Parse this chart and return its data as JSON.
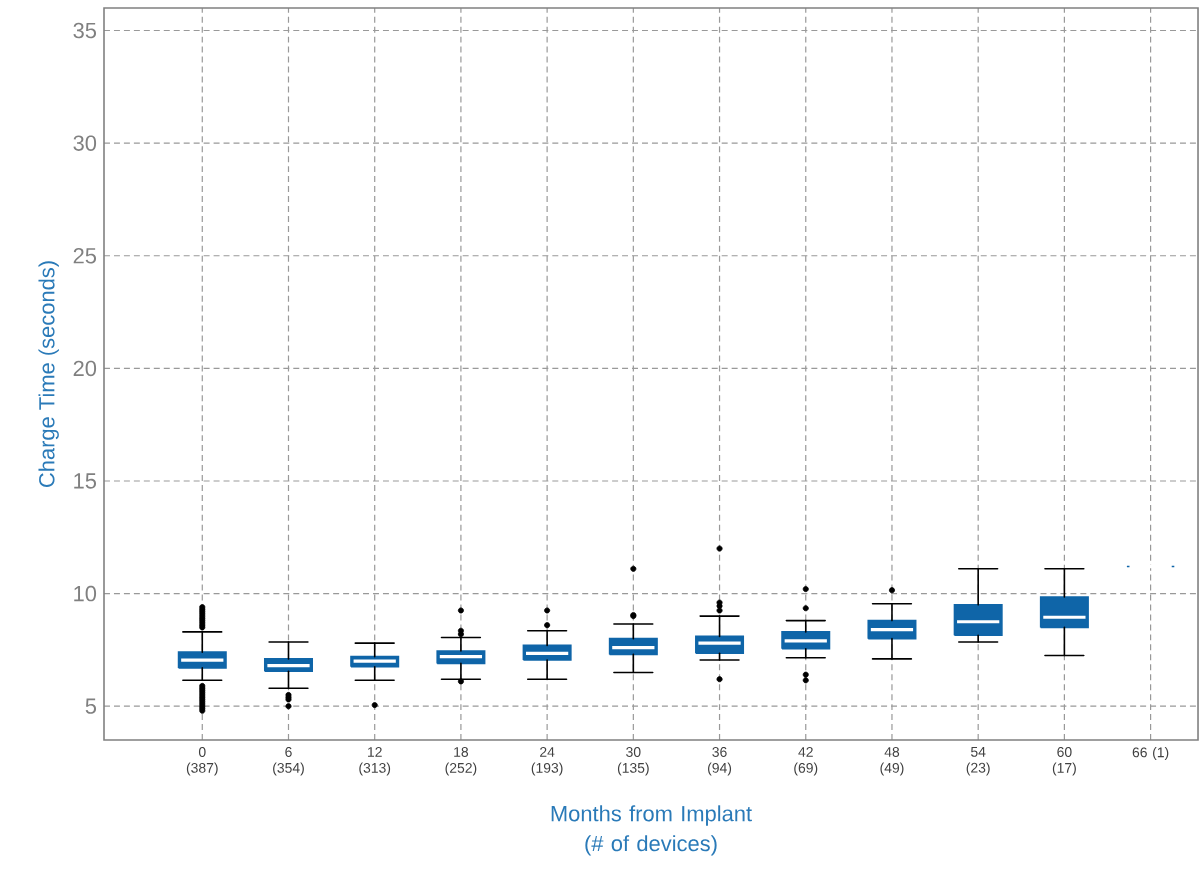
{
  "chart_data": {
    "type": "box",
    "xlabel": "Months from Implant (# of devices)",
    "ylabel": "Charge Time (seconds)",
    "categories": [
      "0 (387)",
      "6 (354)",
      "12 (313)",
      "18 (252)",
      "24 (193)",
      "30 (135)",
      "36 (94)",
      "42 (69)",
      "48 (49)",
      "54 (23)",
      "60 (17)",
      "66 (1)"
    ],
    "color": "#0f65a8",
    "boxes": [
      {
        "low": 6.15,
        "q1": 6.7,
        "median": 7.05,
        "q3": 7.4,
        "high": 8.3,
        "outliers": [
          8.5,
          8.6,
          8.7,
          8.8,
          8.9,
          9.0,
          9.1,
          9.2,
          9.3,
          9.4,
          4.8,
          4.9,
          5.0,
          5.1,
          5.2,
          5.3,
          5.4,
          5.5,
          5.6,
          5.7,
          5.8,
          5.9
        ]
      },
      {
        "low": 5.8,
        "q1": 6.55,
        "median": 6.8,
        "q3": 7.1,
        "high": 7.85,
        "outliers": [
          5.5,
          5.4,
          5.3,
          5.0
        ]
      },
      {
        "low": 6.15,
        "q1": 6.75,
        "median": 7.0,
        "q3": 7.2,
        "high": 7.8,
        "outliers": [
          5.05
        ]
      },
      {
        "low": 6.2,
        "q1": 6.9,
        "median": 7.2,
        "q3": 7.45,
        "high": 8.05,
        "outliers": [
          8.2,
          8.35,
          9.25,
          6.1
        ]
      },
      {
        "low": 6.2,
        "q1": 7.05,
        "median": 7.35,
        "q3": 7.7,
        "high": 8.35,
        "outliers": [
          8.6,
          9.25
        ]
      },
      {
        "low": 6.5,
        "q1": 7.3,
        "median": 7.6,
        "q3": 8.0,
        "high": 8.65,
        "outliers": [
          9.0,
          9.05,
          11.1
        ]
      },
      {
        "low": 7.05,
        "q1": 7.35,
        "median": 7.8,
        "q3": 8.1,
        "high": 9.0,
        "outliers": [
          6.2,
          9.25,
          9.45,
          9.6,
          12.0
        ]
      },
      {
        "low": 7.15,
        "q1": 7.55,
        "median": 7.9,
        "q3": 8.3,
        "high": 8.8,
        "outliers": [
          9.35,
          10.2,
          6.4,
          6.15
        ]
      },
      {
        "low": 7.1,
        "q1": 8.0,
        "median": 8.4,
        "q3": 8.8,
        "high": 9.55,
        "outliers": [
          10.15
        ]
      },
      {
        "low": 7.85,
        "q1": 8.15,
        "median": 8.75,
        "q3": 9.5,
        "high": 11.1
      },
      {
        "low": 7.25,
        "q1": 8.5,
        "median": 8.95,
        "q3": 9.85,
        "high": 11.1
      },
      {
        "low": 11.2,
        "q1": 11.2,
        "median": 11.2,
        "q3": 11.2,
        "high": 11.2
      }
    ],
    "ylim": [
      3.5,
      36
    ],
    "yticks": [
      5,
      10,
      15,
      20,
      25,
      30,
      35
    ],
    "grid": true
  }
}
